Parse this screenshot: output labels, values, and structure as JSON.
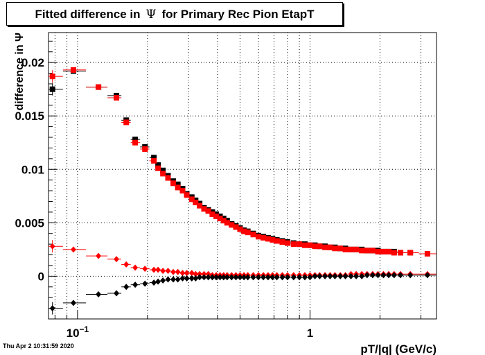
{
  "title": {
    "before": "Fitted difference in",
    "symbol": "Ψ",
    "after": "for Primary Rec Pion EtapT"
  },
  "footer": {
    "timestamp": "Thu Apr  2 10:31:59 2020"
  },
  "chart_data": {
    "type": "scatter",
    "xlabel": "pT/|q| (GeV/c)",
    "ylabel": "difference in  Ψ",
    "xscale": "log",
    "xlim": [
      0.075,
      3.5
    ],
    "ylim": [
      -0.004,
      0.0228
    ],
    "grid": true,
    "y_ticks": [
      {
        "value": 0,
        "label": "0"
      },
      {
        "value": 0.005,
        "label": "0.005"
      },
      {
        "value": 0.01,
        "label": "0.01"
      },
      {
        "value": 0.015,
        "label": "0.015"
      },
      {
        "value": 0.02,
        "label": "0.02"
      }
    ],
    "x_ticks": [
      {
        "value": 0.1,
        "label": "10",
        "sup": "−1"
      },
      {
        "value": 1,
        "label": "1",
        "sup": ""
      }
    ],
    "colors": {
      "black": "#000000",
      "red": "#ff0000"
    },
    "series": [
      {
        "marker": "square",
        "color": "#000000",
        "x": [
          0.078,
          0.096,
          0.123,
          0.147,
          0.162,
          0.177,
          0.195,
          0.213,
          0.222,
          0.233,
          0.245,
          0.258,
          0.27,
          0.283,
          0.295,
          0.31,
          0.322,
          0.335,
          0.35,
          0.365,
          0.38,
          0.395,
          0.41,
          0.425,
          0.44,
          0.46,
          0.48,
          0.5,
          0.52,
          0.54,
          0.57,
          0.6,
          0.63,
          0.66,
          0.69,
          0.72,
          0.76,
          0.8,
          0.85,
          0.9,
          0.95,
          1.0,
          1.05,
          1.1,
          1.16,
          1.22,
          1.28,
          1.35,
          1.42,
          1.5,
          1.58,
          1.67,
          1.76,
          1.86,
          1.96,
          2.07,
          2.18,
          2.3,
          2.45,
          2.7,
          3.2
        ],
        "y": [
          0.0175,
          0.0192,
          0.0177,
          0.0169,
          0.0146,
          0.0128,
          0.0121,
          0.0111,
          0.0104,
          0.0099,
          0.0094,
          0.0089,
          0.0086,
          0.0082,
          0.0077,
          0.0074,
          0.0071,
          0.0068,
          0.0064,
          0.0062,
          0.006,
          0.0058,
          0.0056,
          0.0054,
          0.0052,
          0.0049,
          0.0047,
          0.0045,
          0.0043,
          0.0042,
          0.004,
          0.0038,
          0.0037,
          0.0036,
          0.0035,
          0.0034,
          0.0033,
          0.0032,
          0.0031,
          0.003,
          0.003,
          0.0029,
          0.0029,
          0.0028,
          0.0028,
          0.0027,
          0.0027,
          0.0026,
          0.0026,
          0.0025,
          0.0025,
          0.0025,
          0.0024,
          0.0024,
          0.0024,
          0.0023,
          0.0023,
          0.0023,
          0.0022,
          0.0022,
          0.0021
        ]
      },
      {
        "marker": "square",
        "color": "#ff0000",
        "x": [
          0.078,
          0.096,
          0.123,
          0.147,
          0.162,
          0.177,
          0.195,
          0.213,
          0.222,
          0.233,
          0.245,
          0.258,
          0.27,
          0.283,
          0.295,
          0.31,
          0.322,
          0.335,
          0.35,
          0.365,
          0.38,
          0.395,
          0.41,
          0.425,
          0.44,
          0.46,
          0.48,
          0.5,
          0.52,
          0.54,
          0.57,
          0.6,
          0.63,
          0.66,
          0.69,
          0.72,
          0.76,
          0.8,
          0.85,
          0.9,
          0.95,
          1.0,
          1.05,
          1.1,
          1.16,
          1.22,
          1.28,
          1.35,
          1.42,
          1.5,
          1.58,
          1.67,
          1.76,
          1.86,
          1.96,
          2.07,
          2.18,
          2.3,
          2.45,
          2.7,
          3.2
        ],
        "y": [
          0.0187,
          0.0193,
          0.0177,
          0.0167,
          0.0144,
          0.0125,
          0.0119,
          0.0108,
          0.0101,
          0.0096,
          0.0092,
          0.0087,
          0.0083,
          0.008,
          0.0076,
          0.0072,
          0.0069,
          0.0066,
          0.0063,
          0.0061,
          0.0058,
          0.0056,
          0.0054,
          0.0052,
          0.005,
          0.0048,
          0.0046,
          0.0044,
          0.0042,
          0.0041,
          0.0039,
          0.0037,
          0.0036,
          0.0035,
          0.0034,
          0.0033,
          0.0032,
          0.0031,
          0.003,
          0.003,
          0.0029,
          0.0029,
          0.0028,
          0.0028,
          0.0027,
          0.0027,
          0.0026,
          0.0026,
          0.0025,
          0.0025,
          0.0025,
          0.0024,
          0.0024,
          0.0024,
          0.0023,
          0.0023,
          0.0023,
          0.0022,
          0.0022,
          0.0022,
          0.0021
        ]
      },
      {
        "marker": "diamond",
        "color": "#ff0000",
        "x": [
          0.078,
          0.096,
          0.123,
          0.147,
          0.162,
          0.177,
          0.195,
          0.213,
          0.222,
          0.233,
          0.245,
          0.258,
          0.27,
          0.283,
          0.295,
          0.31,
          0.322,
          0.335,
          0.35,
          0.365,
          0.38,
          0.395,
          0.41,
          0.425,
          0.44,
          0.46,
          0.48,
          0.5,
          0.52,
          0.54,
          0.57,
          0.6,
          0.63,
          0.66,
          0.69,
          0.72,
          0.76,
          0.8,
          0.85,
          0.9,
          0.95,
          1.0,
          1.05,
          1.1,
          1.16,
          1.22,
          1.28,
          1.35,
          1.42,
          1.5,
          1.58,
          1.67,
          1.76,
          1.86,
          1.96,
          2.07,
          2.18,
          2.3,
          2.45,
          2.7,
          3.2
        ],
        "y": [
          0.0028,
          0.0025,
          0.0019,
          0.0016,
          0.0011,
          0.0008,
          0.0007,
          0.0006,
          0.0006,
          0.0005,
          0.0005,
          0.0004,
          0.0004,
          0.0003,
          0.0003,
          0.0003,
          0.0002,
          0.0002,
          0.0002,
          0.0002,
          0.0001,
          0.0001,
          0.0001,
          0.0001,
          0.0001,
          0.0001,
          0.0001,
          0.0001,
          0.0001,
          0.0001,
          0.0001,
          0.0001,
          0.0001,
          0.0001,
          0.0001,
          0.0001,
          0.0001,
          0.0001,
          0.0001,
          0.0001,
          0.0001,
          0.0001,
          0.0001,
          0.0001,
          0.0001,
          0.0001,
          0.0001,
          0.0001,
          0.0001,
          0.0002,
          0.0002,
          0.0002,
          0.0002,
          0.0002,
          0.0002,
          0.0002,
          0.0002,
          0.0002,
          0.0002,
          0.0002,
          0.0002
        ]
      },
      {
        "marker": "diamond",
        "color": "#000000",
        "x": [
          0.078,
          0.096,
          0.123,
          0.147,
          0.162,
          0.177,
          0.195,
          0.213,
          0.222,
          0.233,
          0.245,
          0.258,
          0.27,
          0.283,
          0.295,
          0.31,
          0.322,
          0.335,
          0.35,
          0.365,
          0.38,
          0.395,
          0.41,
          0.425,
          0.44,
          0.46,
          0.48,
          0.5,
          0.52,
          0.54,
          0.57,
          0.6,
          0.63,
          0.66,
          0.69,
          0.72,
          0.76,
          0.8,
          0.85,
          0.9,
          0.95,
          1.0,
          1.05,
          1.1,
          1.16,
          1.22,
          1.28,
          1.35,
          1.42,
          1.5,
          1.58,
          1.67,
          1.76,
          1.86,
          1.96,
          2.07,
          2.18,
          2.3,
          2.45,
          2.7,
          3.2
        ],
        "y": [
          -0.003,
          -0.0025,
          -0.0017,
          -0.0016,
          -0.001,
          -0.0008,
          -0.0007,
          -0.0006,
          -0.0005,
          -0.0004,
          -0.0003,
          -0.0003,
          -0.0003,
          -0.0002,
          -0.0002,
          -0.0002,
          -0.0002,
          -0.0001,
          -0.0001,
          -0.0001,
          -0.0001,
          -0.0001,
          -0.0001,
          -0.0001,
          -0.0001,
          -0.0001,
          -0.0001,
          -0.0001,
          -0.0001,
          -0.0001,
          -0.0001,
          -0.0001,
          -0.0001,
          -0.0001,
          -0.0001,
          -0.0001,
          -0.0001,
          -0.0001,
          -0.0001,
          -0.0001,
          -0.0001,
          -0.0001,
          0.0,
          0.0,
          0.0,
          0.0,
          0.0,
          0.0,
          0.0,
          0.0,
          0.0,
          0.0,
          0.0001,
          0.0001,
          0.0001,
          0.0001,
          0.0001,
          0.0001,
          0.0001,
          0.0001,
          0.0001
        ]
      }
    ]
  }
}
